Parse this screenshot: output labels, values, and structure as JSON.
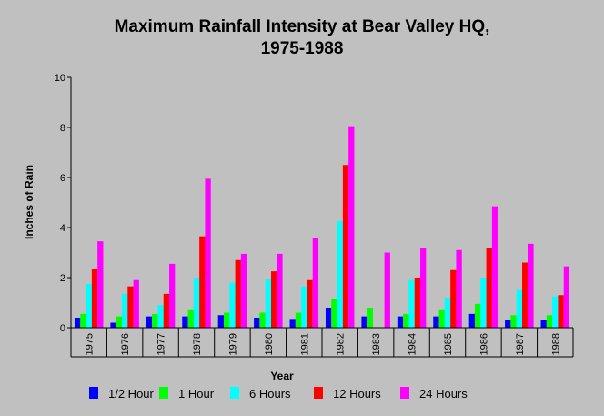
{
  "chart_data": {
    "type": "bar",
    "title": [
      "Maximum Rainfall Intensity at Bear Valley HQ,",
      "1975-1988"
    ],
    "xlabel": "Year",
    "ylabel": "Inches of Rain",
    "ylim": [
      0,
      10
    ],
    "yticks": [
      "0",
      "2",
      "4",
      "6",
      "8",
      "10"
    ],
    "grid": false,
    "legend_position": "bottom",
    "categories": [
      "1975",
      "1976",
      "1977",
      "1978",
      "1979",
      "1980",
      "1981",
      "1982",
      "1983",
      "1984",
      "1985",
      "1986",
      "1987",
      "1988"
    ],
    "series": [
      {
        "name": "1/2 Hour",
        "color": "#0000ff",
        "values": [
          0.4,
          0.2,
          0.45,
          0.45,
          0.5,
          0.4,
          0.35,
          0.8,
          0.45,
          0.45,
          0.45,
          0.55,
          0.3,
          0.3
        ]
      },
      {
        "name": "1 Hour",
        "color": "#00ff00",
        "values": [
          0.55,
          0.45,
          0.55,
          0.7,
          0.6,
          0.6,
          0.6,
          1.15,
          0.8,
          0.55,
          0.7,
          0.95,
          0.5,
          0.5
        ]
      },
      {
        "name": "6 Hours",
        "color": "#00ffff",
        "values": [
          1.75,
          1.35,
          0.9,
          2.0,
          1.8,
          1.95,
          1.65,
          4.25,
          0.0,
          1.9,
          1.2,
          2.0,
          1.5,
          1.25
        ]
      },
      {
        "name": "12 Hours",
        "color": "#ff0000",
        "values": [
          2.35,
          1.65,
          1.35,
          3.65,
          2.7,
          2.25,
          1.9,
          6.5,
          0.0,
          2.0,
          2.3,
          3.2,
          2.6,
          1.3
        ]
      },
      {
        "name": "24 Hours",
        "color": "#ff00ff",
        "values": [
          3.45,
          1.9,
          2.55,
          5.95,
          2.95,
          2.95,
          3.6,
          8.05,
          3.0,
          3.2,
          3.1,
          4.85,
          3.35,
          2.45
        ]
      }
    ]
  }
}
